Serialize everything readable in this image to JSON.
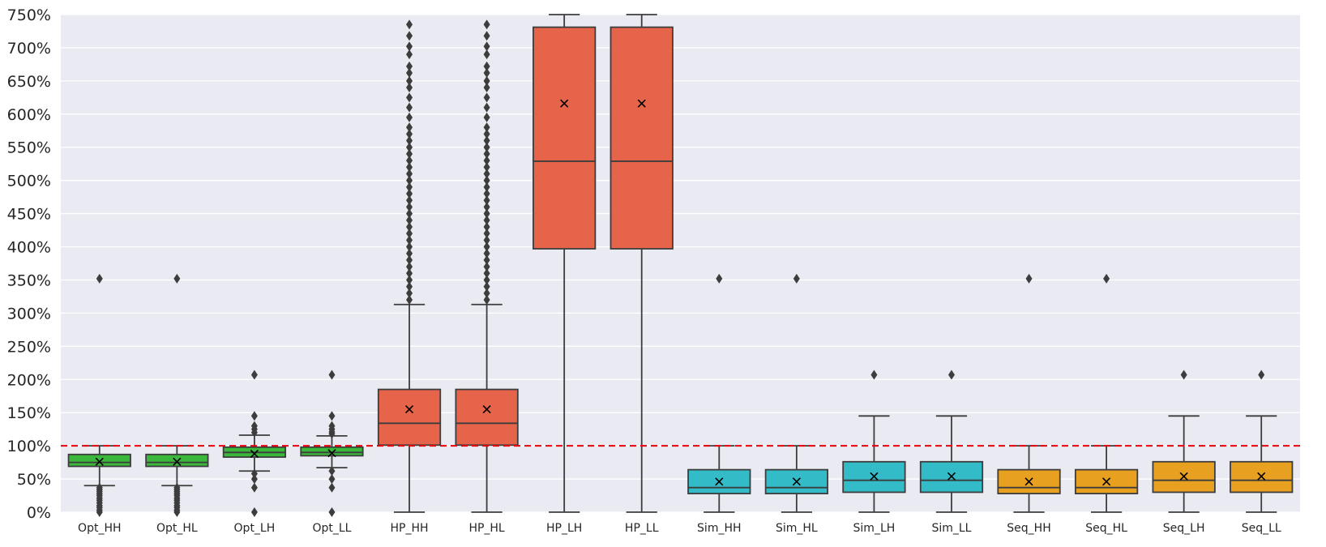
{
  "chart_data": {
    "type": "box",
    "title": "",
    "xlabel": "",
    "ylabel": "",
    "ylim": [
      0,
      750
    ],
    "y_unit": "%",
    "yticks": [
      "0%",
      "50%",
      "100%",
      "150%",
      "200%",
      "250%",
      "300%",
      "350%",
      "400%",
      "450%",
      "500%",
      "550%",
      "600%",
      "650%",
      "700%",
      "750%"
    ],
    "grid": true,
    "reference_line": {
      "y": 100,
      "color": "#e8000b",
      "style": "dashed"
    },
    "mean_marker": "x",
    "categories": [
      "Opt_HH",
      "Opt_HL",
      "Opt_LH",
      "Opt_LL",
      "HP_HH",
      "HP_HL",
      "HP_LH",
      "HP_LL",
      "Sim_HH",
      "Sim_HL",
      "Sim_LH",
      "Sim_LL",
      "Seq_HH",
      "Seq_HL",
      "Seq_LH",
      "Seq_LL"
    ],
    "groups": [
      {
        "prefix": "Opt",
        "color": "#3bb83b"
      },
      {
        "prefix": "HP",
        "color": "#e5644a"
      },
      {
        "prefix": "Sim",
        "color": "#33bcc8"
      },
      {
        "prefix": "Seq",
        "color": "#e8a020"
      }
    ],
    "boxes": [
      {
        "label": "Opt_HH",
        "color": "#3bb83b",
        "whislo": 40,
        "q1": 69,
        "med": 75,
        "q3": 87,
        "whishi": 100,
        "mean": 76,
        "fliers": [
          352,
          0,
          3,
          7,
          10,
          14,
          18,
          21,
          25,
          28,
          31,
          34,
          37
        ]
      },
      {
        "label": "Opt_HL",
        "color": "#3bb83b",
        "whislo": 40,
        "q1": 69,
        "med": 75,
        "q3": 87,
        "whishi": 100,
        "mean": 76,
        "fliers": [
          352,
          0,
          3,
          7,
          10,
          14,
          18,
          21,
          25,
          28,
          31,
          34,
          37
        ]
      },
      {
        "label": "Opt_LH",
        "color": "#3bb83b",
        "whislo": 62,
        "q1": 83,
        "med": 90,
        "q3": 98,
        "whishi": 116,
        "mean": 88,
        "fliers": [
          207,
          145,
          130,
          125,
          120,
          58,
          50,
          37,
          0
        ]
      },
      {
        "label": "Opt_LL",
        "color": "#3bb83b",
        "whislo": 67,
        "q1": 85,
        "med": 90,
        "q3": 98,
        "whishi": 115,
        "mean": 89,
        "fliers": [
          207,
          145,
          130,
          125,
          121,
          118,
          62,
          50,
          37,
          0
        ]
      },
      {
        "label": "HP_HH",
        "color": "#e5644a",
        "whislo": 0,
        "q1": 101,
        "med": 134,
        "q3": 185,
        "whishi": 313,
        "mean": 155,
        "fliers": [
          320,
          330,
          340,
          350,
          360,
          370,
          380,
          390,
          400,
          410,
          420,
          430,
          440,
          450,
          460,
          470,
          480,
          490,
          500,
          510,
          520,
          530,
          540,
          550,
          560,
          570,
          580,
          595,
          610,
          625,
          640,
          650,
          662,
          672,
          690,
          702,
          718,
          735
        ]
      },
      {
        "label": "HP_HL",
        "color": "#e5644a",
        "whislo": 0,
        "q1": 101,
        "med": 134,
        "q3": 185,
        "whishi": 313,
        "mean": 155,
        "fliers": [
          320,
          330,
          340,
          350,
          360,
          370,
          380,
          390,
          400,
          410,
          420,
          430,
          440,
          450,
          460,
          470,
          480,
          490,
          500,
          510,
          520,
          530,
          540,
          550,
          560,
          570,
          580,
          595,
          610,
          625,
          640,
          650,
          662,
          672,
          690,
          702,
          718,
          735
        ]
      },
      {
        "label": "HP_LH",
        "color": "#e5644a",
        "whislo": 0,
        "q1": 397,
        "med": 529,
        "q3": 731,
        "whishi": 750,
        "mean": 616,
        "fliers": []
      },
      {
        "label": "HP_LL",
        "color": "#e5644a",
        "whislo": 0,
        "q1": 397,
        "med": 529,
        "q3": 731,
        "whishi": 750,
        "mean": 616,
        "fliers": []
      },
      {
        "label": "Sim_HH",
        "color": "#33bcc8",
        "whislo": 0,
        "q1": 28,
        "med": 37,
        "q3": 64,
        "whishi": 100,
        "mean": 46,
        "fliers": [
          352
        ]
      },
      {
        "label": "Sim_HL",
        "color": "#33bcc8",
        "whislo": 0,
        "q1": 28,
        "med": 37,
        "q3": 64,
        "whishi": 100,
        "mean": 46,
        "fliers": [
          352
        ]
      },
      {
        "label": "Sim_LH",
        "color": "#33bcc8",
        "whislo": 0,
        "q1": 30,
        "med": 48,
        "q3": 76,
        "whishi": 145,
        "mean": 54,
        "fliers": [
          207
        ]
      },
      {
        "label": "Sim_LL",
        "color": "#33bcc8",
        "whislo": 0,
        "q1": 30,
        "med": 48,
        "q3": 76,
        "whishi": 145,
        "mean": 54,
        "fliers": [
          207
        ]
      },
      {
        "label": "Seq_HH",
        "color": "#e8a020",
        "whislo": 0,
        "q1": 28,
        "med": 37,
        "q3": 64,
        "whishi": 100,
        "mean": 46,
        "fliers": [
          352
        ]
      },
      {
        "label": "Seq_HL",
        "color": "#e8a020",
        "whislo": 0,
        "q1": 28,
        "med": 37,
        "q3": 64,
        "whishi": 100,
        "mean": 46,
        "fliers": [
          352
        ]
      },
      {
        "label": "Seq_LH",
        "color": "#e8a020",
        "whislo": 0,
        "q1": 30,
        "med": 48,
        "q3": 76,
        "whishi": 145,
        "mean": 54,
        "fliers": [
          207
        ]
      },
      {
        "label": "Seq_LL",
        "color": "#e8a020",
        "whislo": 0,
        "q1": 30,
        "med": 48,
        "q3": 76,
        "whishi": 145,
        "mean": 54,
        "fliers": [
          207
        ]
      }
    ]
  },
  "colors": {
    "plot_background": "#eaeaf2",
    "grid": "#ffffff",
    "box_edge": "#3d3d3d"
  }
}
